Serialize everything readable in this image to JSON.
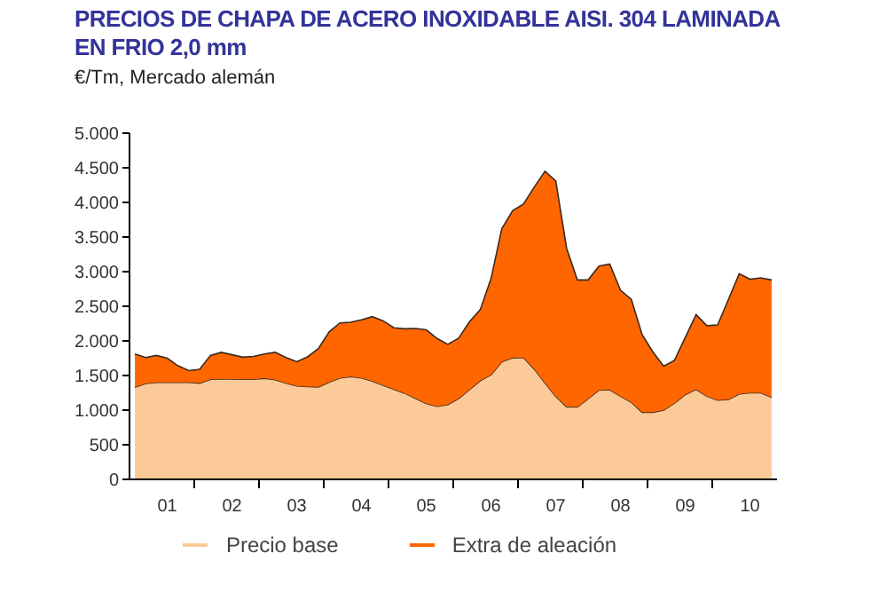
{
  "chart_data": {
    "type": "area",
    "title": "PRECIOS DE CHAPA DE ACERO INOXIDABLE AISI. 304 LAMINADA EN FRIO 2,0 mm",
    "subtitle": "€/Tm, Mercado alemán",
    "stacked": true,
    "legend": "bottom",
    "categories": [
      null,
      null,
      null,
      "01",
      null,
      null,
      null,
      null,
      null,
      "02",
      null,
      null,
      null,
      null,
      null,
      "03",
      null,
      null,
      null,
      null,
      null,
      "04",
      null,
      null,
      null,
      null,
      null,
      "05",
      null,
      null,
      null,
      null,
      null,
      "06",
      null,
      null,
      null,
      null,
      null,
      "07",
      null,
      null,
      null,
      null,
      null,
      "08",
      null,
      null,
      null,
      null,
      null,
      "09",
      null,
      null,
      null,
      null,
      null,
      "10",
      null,
      null
    ],
    "series": [
      {
        "name": "Precio base",
        "color": "#fcca98",
        "values": [
          1330,
          1385,
          1400,
          1400,
          1400,
          1400,
          1390,
          1445,
          1450,
          1450,
          1445,
          1445,
          1460,
          1440,
          1390,
          1350,
          1340,
          1335,
          1405,
          1465,
          1485,
          1465,
          1420,
          1360,
          1300,
          1245,
          1170,
          1095,
          1055,
          1080,
          1170,
          1295,
          1425,
          1510,
          1700,
          1755,
          1760,
          1595,
          1395,
          1200,
          1050,
          1045,
          1165,
          1290,
          1295,
          1200,
          1115,
          970,
          970,
          1000,
          1100,
          1225,
          1300,
          1200,
          1145,
          1155,
          1235,
          1250,
          1250,
          1185
        ]
      },
      {
        "name": "Extra de aleación",
        "color": "#ff6600",
        "values": [
          480,
          375,
          390,
          350,
          240,
          170,
          200,
          345,
          385,
          350,
          320,
          330,
          350,
          395,
          370,
          350,
          430,
          555,
          725,
          795,
          785,
          840,
          930,
          930,
          890,
          930,
          1010,
          1065,
          980,
          870,
          870,
          980,
          1025,
          1390,
          1920,
          2125,
          2215,
          2625,
          3055,
          3110,
          2290,
          1835,
          1715,
          1790,
          1815,
          1530,
          1485,
          1120,
          870,
          635,
          620,
          825,
          1080,
          1020,
          1085,
          1445,
          1735,
          1640,
          1660,
          1695
        ]
      }
    ],
    "ylim": [
      0,
      5000
    ],
    "yticks": [
      0,
      500,
      {
        "value": 1000,
        "label": "1.000"
      },
      {
        "value": 1500,
        "label": "1.500"
      },
      {
        "value": 2000,
        "label": "2.000"
      },
      {
        "value": 2500,
        "label": "2.500"
      },
      {
        "value": 3000,
        "label": "3.000"
      },
      {
        "value": 3500,
        "label": "3.500"
      },
      {
        "value": 4000,
        "label": "4.000"
      },
      {
        "value": 4500,
        "label": "4.500"
      },
      {
        "value": 5000,
        "label": "5.000"
      }
    ]
  }
}
